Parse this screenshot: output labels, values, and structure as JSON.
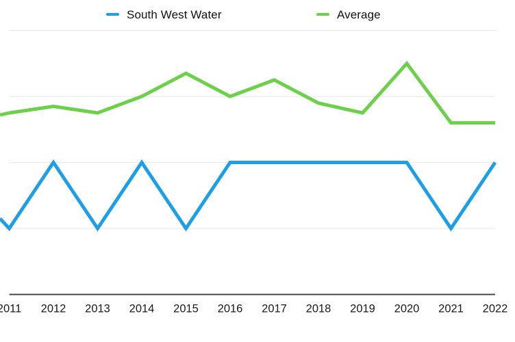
{
  "legend": {
    "items": [
      {
        "label": "South West Water",
        "color": "#1d9fe8"
      },
      {
        "label": "Average",
        "color": "#6cd04b"
      }
    ]
  },
  "chart_data": {
    "type": "line",
    "title": "",
    "xlabel": "",
    "ylabel": "",
    "x": [
      2011,
      2012,
      2013,
      2014,
      2015,
      2016,
      2017,
      2018,
      2019,
      2020,
      2021,
      2022
    ],
    "categories": [
      "2011",
      "2012",
      "2013",
      "2014",
      "2015",
      "2016",
      "2017",
      "2018",
      "2019",
      "2020",
      "2021",
      "2022"
    ],
    "series": [
      {
        "name": "South West Water",
        "color": "#1d9fe8",
        "values": [
          1,
          2,
          1,
          2,
          1,
          2,
          2,
          2,
          2,
          2,
          1,
          2
        ],
        "clipped_lead_in": {
          "x": 2010.79,
          "value": 1.15
        }
      },
      {
        "name": "Average",
        "color": "#6cd04b",
        "values": [
          2.75,
          2.85,
          2.75,
          3.0,
          3.35,
          3.0,
          3.25,
          2.9,
          2.75,
          3.5,
          2.6,
          2.6
        ],
        "clipped_lead_in": {
          "x": 2010.79,
          "value": 2.72
        }
      }
    ],
    "ylim": [
      0,
      4.45
    ],
    "grid": {
      "y_values": [
        1,
        2,
        3,
        4
      ],
      "color": "#e7e7e7"
    },
    "axis_line_color": "#474747",
    "tick_label_color": "#1a1a1a",
    "legend_position": "top",
    "line_width": 5
  }
}
